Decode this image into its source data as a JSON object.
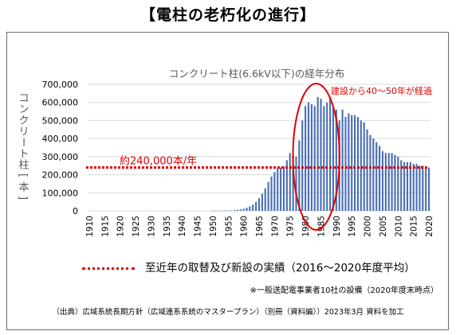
{
  "page_title": "【電柱の老朽化の進行】",
  "legend": {
    "label": "至近年の取替及び新設の実績（2016～2020年度平均）",
    "color": "#e00000"
  },
  "note": "※一般送配電事業者10社の設備（2020年度末時点）",
  "source": "（出典）広域系統長期方針（広域連系系統のマスタープラン）（別冊（資料編））2023年3月 資料を加工",
  "chart_data": {
    "type": "bar",
    "title": "コンクリート柱(6.6kV以下)の経年分布",
    "ylabel": "コンクリート柱[本]",
    "xlabel": "",
    "ylim": [
      0,
      700000
    ],
    "y_ticks": [
      "0",
      "100,000",
      "200,000",
      "300,000",
      "400,000",
      "500,000",
      "600,000",
      "700,000"
    ],
    "x_tick_labels": [
      "1910",
      "1915",
      "1920",
      "1925",
      "1930",
      "1935",
      "1940",
      "1945",
      "1950",
      "1955",
      "1960",
      "1965",
      "1970",
      "1975",
      "1980",
      "1985",
      "1990",
      "1995",
      "2000",
      "2005",
      "2010",
      "2015",
      "2020"
    ],
    "grid": true,
    "bar_color": "#4a6fb5",
    "years": [
      1910,
      1911,
      1912,
      1913,
      1914,
      1915,
      1916,
      1917,
      1918,
      1919,
      1920,
      1921,
      1922,
      1923,
      1924,
      1925,
      1926,
      1927,
      1928,
      1929,
      1930,
      1931,
      1932,
      1933,
      1934,
      1935,
      1936,
      1937,
      1938,
      1939,
      1940,
      1941,
      1942,
      1943,
      1944,
      1945,
      1946,
      1947,
      1948,
      1949,
      1950,
      1951,
      1952,
      1953,
      1954,
      1955,
      1956,
      1957,
      1958,
      1959,
      1960,
      1961,
      1962,
      1963,
      1964,
      1965,
      1966,
      1967,
      1968,
      1969,
      1970,
      1971,
      1972,
      1973,
      1974,
      1975,
      1976,
      1977,
      1978,
      1979,
      1980,
      1981,
      1982,
      1983,
      1984,
      1985,
      1986,
      1987,
      1988,
      1989,
      1990,
      1991,
      1992,
      1993,
      1994,
      1995,
      1996,
      1997,
      1998,
      1999,
      2000,
      2001,
      2002,
      2003,
      2004,
      2005,
      2006,
      2007,
      2008,
      2009,
      2010,
      2011,
      2012,
      2013,
      2014,
      2015,
      2016,
      2017,
      2018,
      2019,
      2020
    ],
    "values": [
      0,
      0,
      0,
      0,
      0,
      0,
      0,
      0,
      0,
      0,
      0,
      0,
      0,
      0,
      0,
      0,
      0,
      0,
      0,
      0,
      0,
      0,
      0,
      0,
      0,
      0,
      0,
      0,
      0,
      0,
      0,
      0,
      0,
      0,
      0,
      0,
      0,
      0,
      0,
      0,
      500,
      500,
      1000,
      1000,
      1500,
      2000,
      3000,
      4000,
      6000,
      8000,
      12000,
      18000,
      25000,
      35000,
      50000,
      70000,
      95000,
      125000,
      160000,
      190000,
      215000,
      235000,
      240000,
      245000,
      280000,
      320000,
      310000,
      300000,
      390000,
      500000,
      580000,
      600000,
      590000,
      580000,
      630000,
      620000,
      580000,
      600000,
      630000,
      570000,
      560000,
      500000,
      560000,
      520000,
      540000,
      530000,
      530000,
      520000,
      500000,
      490000,
      450000,
      420000,
      400000,
      380000,
      360000,
      330000,
      320000,
      320000,
      320000,
      310000,
      300000,
      280000,
      270000,
      270000,
      270000,
      260000,
      260000,
      250000,
      250000,
      245000,
      240000
    ],
    "reference_line": {
      "label": "約240,000本/年",
      "value": 240000
    },
    "annotation": {
      "label": "建設から40～50年が経過",
      "color": "#e00000",
      "from_year": 1977,
      "to_year": 1990
    }
  }
}
